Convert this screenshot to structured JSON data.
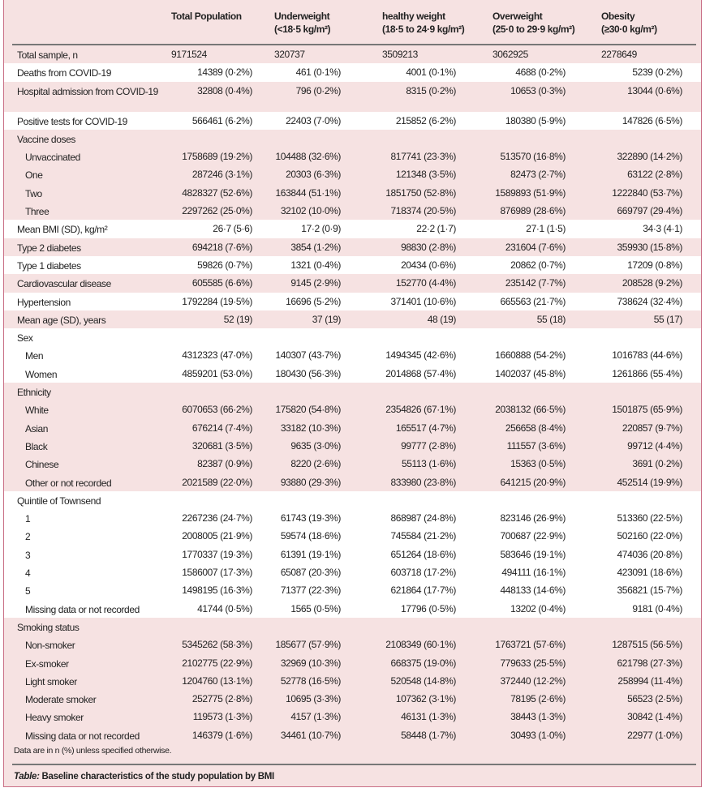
{
  "columns": [
    "Total Population",
    [
      "Underweight",
      "(<18·5 kg/m²)"
    ],
    [
      "healthy weight",
      "(18·5 to 24·9 kg/m²)"
    ],
    [
      "Overweight",
      "(25·0 to 29·9 kg/m²)"
    ],
    [
      "Obesity",
      "(≥30·0 kg/m²)"
    ]
  ],
  "header": {
    "c0": "Total Population",
    "c1a": "Underweight",
    "c1b": "(<18·5 kg/m²)",
    "c2a": "healthy weight",
    "c2b": "(18·5 to 24·9 kg/m²)",
    "c3a": "Overweight",
    "c3b": "(25·0 to 29·9 kg/m²)",
    "c4a": "Obesity",
    "c4b": "(≥30·0 kg/m²)"
  },
  "rows": [
    {
      "label": "Total sample, n",
      "values": [
        "9171524",
        "320737",
        "3509213",
        "3062925",
        "2278649"
      ],
      "left": true
    },
    {
      "label": "Deaths from COVID-19",
      "values": [
        "14389 (0·2%)",
        "461 (0·1%)",
        "4001 (0·1%)",
        "4688 (0·2%)",
        "5239 (0·2%)"
      ],
      "white": true
    },
    {
      "label": "Hospital admission from COVID-19",
      "values": [
        "32808 (0·4%)",
        "796 (0·2%)",
        "8315 (0·2%)",
        "10653 (0·3%)",
        "13044 (0·6%)"
      ],
      "tall": true
    },
    {
      "label": "Positive tests for COVID-19",
      "values": [
        "566461 (6·2%)",
        "22403 (7·0%)",
        "215852 (6·2%)",
        "180380 (5·9%)",
        "147826 (6·5%)"
      ],
      "white": true
    },
    {
      "label": "Vaccine doses",
      "values": []
    },
    {
      "label": "Unvaccinated",
      "indent": true,
      "values": [
        "1758689 (19·2%)",
        "104488 (32·6%)",
        "817741 (23·3%)",
        "513570 (16·8%)",
        "322890 (14·2%)"
      ]
    },
    {
      "label": "One",
      "indent": true,
      "values": [
        "287246 (3·1%)",
        "20303 (6·3%)",
        "121348 (3·5%)",
        "82473 (2·7%)",
        "63122 (2·8%)"
      ]
    },
    {
      "label": "Two",
      "indent": true,
      "values": [
        "4828327 (52·6%)",
        "163844 (51·1%)",
        "1851750 (52·8%)",
        "1589893 (51·9%)",
        "1222840 (53·7%)"
      ]
    },
    {
      "label": "Three",
      "indent": true,
      "values": [
        "2297262 (25·0%)",
        "32102 (10·0%)",
        "718374 (20·5%)",
        "876989 (28·6%)",
        "669797 (29·4%)"
      ]
    },
    {
      "label": "Mean BMI (SD), kg/m²",
      "values": [
        "26·7 (5·6)",
        "17·2 (0·9)",
        "22·2 (1·7)",
        "27·1 (1·5)",
        "34·3 (4·1)"
      ],
      "white": true
    },
    {
      "label": "Type 2 diabetes",
      "values": [
        "694218 (7·6%)",
        "3854 (1·2%)",
        "98830 (2·8%)",
        "231604 (7·6%)",
        "359930 (15·8%)"
      ]
    },
    {
      "label": "Type 1 diabetes",
      "values": [
        "59826 (0·7%)",
        "1321 (0·4%)",
        "20434 (0·6%)",
        "20862 (0·7%)",
        "17209 (0·8%)"
      ],
      "white": true
    },
    {
      "label": "Cardiovascular disease",
      "values": [
        "605585 (6·6%)",
        "9145 (2·9%)",
        "152770 (4·4%)",
        "235142 (7·7%)",
        "208528 (9·2%)"
      ]
    },
    {
      "label": "Hypertension",
      "values": [
        "1792284 (19·5%)",
        "16696 (5·2%)",
        "371401 (10·6%)",
        "665563 (21·7%)",
        "738624 (32·4%)"
      ],
      "white": true
    },
    {
      "label": "Mean age (SD), years",
      "values": [
        "52 (19)",
        "37 (19)",
        "48 (19)",
        "55 (18)",
        "55 (17)"
      ]
    },
    {
      "label": "Sex",
      "values": [],
      "white": true
    },
    {
      "label": "Men",
      "indent": true,
      "values": [
        "4312323 (47·0%)",
        "140307 (43·7%)",
        "1494345 (42·6%)",
        "1660888 (54·2%)",
        "1016783 (44·6%)"
      ],
      "white": true
    },
    {
      "label": "Women",
      "indent": true,
      "values": [
        "4859201 (53·0%)",
        "180430 (56·3%)",
        "2014868 (57·4%)",
        "1402037 (45·8%)",
        "1261866 (55·4%)"
      ],
      "white": true
    },
    {
      "label": "Ethnicity",
      "values": []
    },
    {
      "label": "White",
      "indent": true,
      "values": [
        "6070653 (66·2%)",
        "175820 (54·8%)",
        "2354826 (67·1%)",
        "2038132 (66·5%)",
        "1501875 (65·9%)"
      ]
    },
    {
      "label": "Asian",
      "indent": true,
      "values": [
        "676214 (7·4%)",
        "33182 (10·3%)",
        "165517 (4·7%)",
        "256658 (8·4%)",
        "220857 (9·7%)"
      ]
    },
    {
      "label": "Black",
      "indent": true,
      "values": [
        "320681 (3·5%)",
        "9635 (3·0%)",
        "99777 (2·8%)",
        "111557 (3·6%)",
        "99712 (4·4%)"
      ]
    },
    {
      "label": "Chinese",
      "indent": true,
      "values": [
        "82387 (0·9%)",
        "8220 (2·6%)",
        "55113 (1·6%)",
        "15363 (0·5%)",
        "3691 (0·2%)"
      ]
    },
    {
      "label": "Other or not recorded",
      "indent": true,
      "values": [
        "2021589 (22·0%)",
        "93880 (29·3%)",
        "833980 (23·8%)",
        "641215 (20·9%)",
        "452514 (19·9%)"
      ]
    },
    {
      "label": "Quintile of Townsend",
      "values": [],
      "white": true
    },
    {
      "label": "1",
      "indent": true,
      "values": [
        "2267236 (24·7%)",
        "61743 (19·3%)",
        "868987 (24·8%)",
        "823146 (26·9%)",
        "513360 (22·5%)"
      ],
      "white": true
    },
    {
      "label": "2",
      "indent": true,
      "values": [
        "2008005 (21·9%)",
        "59574 (18·6%)",
        "745584 (21·2%)",
        "700687 (22·9%)",
        "502160 (22·0%)"
      ],
      "white": true
    },
    {
      "label": "3",
      "indent": true,
      "values": [
        "1770337 (19·3%)",
        "61391 (19·1%)",
        "651264 (18·6%)",
        "583646 (19·1%)",
        "474036 (20·8%)"
      ],
      "white": true
    },
    {
      "label": "4",
      "indent": true,
      "values": [
        "1586007 (17·3%)",
        "65087 (20·3%)",
        "603718 (17·2%)",
        "494111 (16·1%)",
        "423091 (18·6%)"
      ],
      "white": true
    },
    {
      "label": "5",
      "indent": true,
      "values": [
        "1498195 (16·3%)",
        "71377 (22·3%)",
        "621864 (17·7%)",
        "448133 (14·6%)",
        "356821 (15·7%)"
      ],
      "white": true
    },
    {
      "label": "Missing data or not recorded",
      "indent": true,
      "values": [
        "41744 (0·5%)",
        "1565 (0·5%)",
        "17796 (0·5%)",
        "13202 (0·4%)",
        "9181 (0·4%)"
      ],
      "white": true
    },
    {
      "label": "Smoking status",
      "values": []
    },
    {
      "label": "Non-smoker",
      "indent": true,
      "values": [
        "5345262 (58·3%)",
        "185677 (57·9%)",
        "2108349 (60·1%)",
        "1763721 (57·6%)",
        "1287515 (56·5%)"
      ]
    },
    {
      "label": "Ex-smoker",
      "indent": true,
      "values": [
        "2102775 (22·9%)",
        "32969 (10·3%)",
        "668375 (19·0%)",
        "779633 (25·5%)",
        "621798 (27·3%)"
      ]
    },
    {
      "label": "Light smoker",
      "indent": true,
      "values": [
        "1204760 (13·1%)",
        "52778 (16·5%)",
        "520548 (14·8%)",
        "372440 (12·2%)",
        "258994 (11·4%)"
      ]
    },
    {
      "label": "Moderate smoker",
      "indent": true,
      "values": [
        "252775 (2·8%)",
        "10695 (3·3%)",
        "107362 (3·1%)",
        "78195 (2·6%)",
        "56523 (2·5%)"
      ]
    },
    {
      "label": "Heavy smoker",
      "indent": true,
      "values": [
        "119573 (1·3%)",
        "4157 (1·3%)",
        "46131 (1·3%)",
        "38443 (1·3%)",
        "30842 (1·4%)"
      ]
    },
    {
      "label": "Missing data or not recorded",
      "indent": true,
      "values": [
        "146379 (1·6%)",
        "34461 (10·7%)",
        "58448 (1·7%)",
        "30493 (1·0%)",
        "22977 (1·0%)"
      ]
    }
  ],
  "footnote": "Data are in n (%) unless specified otherwise.",
  "caption": {
    "prefix": "Table:",
    "text": " Baseline characteristics of the study population by BMI"
  },
  "colors": {
    "background": "#f6e2e2",
    "band": "#ffffff",
    "border": "#c96f86"
  }
}
